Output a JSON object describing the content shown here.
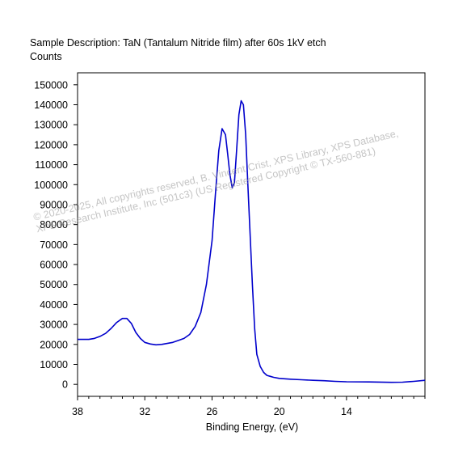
{
  "watermark": {
    "line1": "© 2020-2025,  All copyrights reserved,   B. Vincent Crist,  XPS Library, XPS Database,",
    "line2": "XPS Research Institute, Inc (501c3)   (US Registered Copyright © TX-560-881)"
  },
  "chart_data": {
    "type": "line",
    "title": "Sample Description:  TaN (Tantalum Nitride film) after 60s 1kV etch",
    "ylabel": "Counts",
    "xlabel": "Binding Energy, (eV)",
    "xlim": [
      38,
      7
    ],
    "ylim": [
      -6000,
      156000
    ],
    "x_reversed": true,
    "xticks": [
      38,
      32,
      26,
      20,
      14
    ],
    "yticks": [
      0,
      10000,
      20000,
      30000,
      40000,
      50000,
      60000,
      70000,
      80000,
      90000,
      100000,
      110000,
      120000,
      130000,
      140000,
      150000
    ],
    "grid": false,
    "series_color": "#0000cc",
    "series": [
      {
        "x": [
          38,
          37.0,
          36.5,
          36.0,
          35.5,
          35.0,
          34.5,
          34.0,
          33.6,
          33.2,
          32.8,
          32.4,
          32.0,
          31.5,
          31.0,
          30.5,
          30.0,
          29.5,
          29.0,
          28.5,
          28.0,
          27.5,
          27.0,
          26.5,
          26.0,
          25.7,
          25.4,
          25.1,
          24.8,
          24.6,
          24.4,
          24.2,
          24.0,
          23.8,
          23.6,
          23.4,
          23.2,
          23.0,
          22.8,
          22.6,
          22.4,
          22.2,
          22.0,
          21.7,
          21.4,
          21.1,
          20.8,
          20.5,
          20.0,
          19.5,
          19.0,
          18.0,
          17.0,
          16.0,
          15.0,
          14.0,
          12.0,
          10.0,
          9.0,
          8.0,
          7.0
        ],
        "y": [
          22500,
          22500,
          23000,
          24000,
          25500,
          28000,
          31000,
          33000,
          33000,
          30500,
          26000,
          23000,
          21000,
          20200,
          19800,
          20000,
          20500,
          21000,
          22000,
          23000,
          25000,
          29000,
          36000,
          50000,
          72000,
          95000,
          117000,
          128000,
          125000,
          115000,
          105000,
          98500,
          101000,
          118000,
          135000,
          142000,
          140000,
          125000,
          100000,
          75000,
          50000,
          28000,
          15000,
          9000,
          6000,
          4500,
          4000,
          3500,
          3000,
          2800,
          2600,
          2300,
          2000,
          1800,
          1500,
          1300,
          1200,
          1000,
          1100,
          1500,
          2000
        ]
      }
    ]
  }
}
